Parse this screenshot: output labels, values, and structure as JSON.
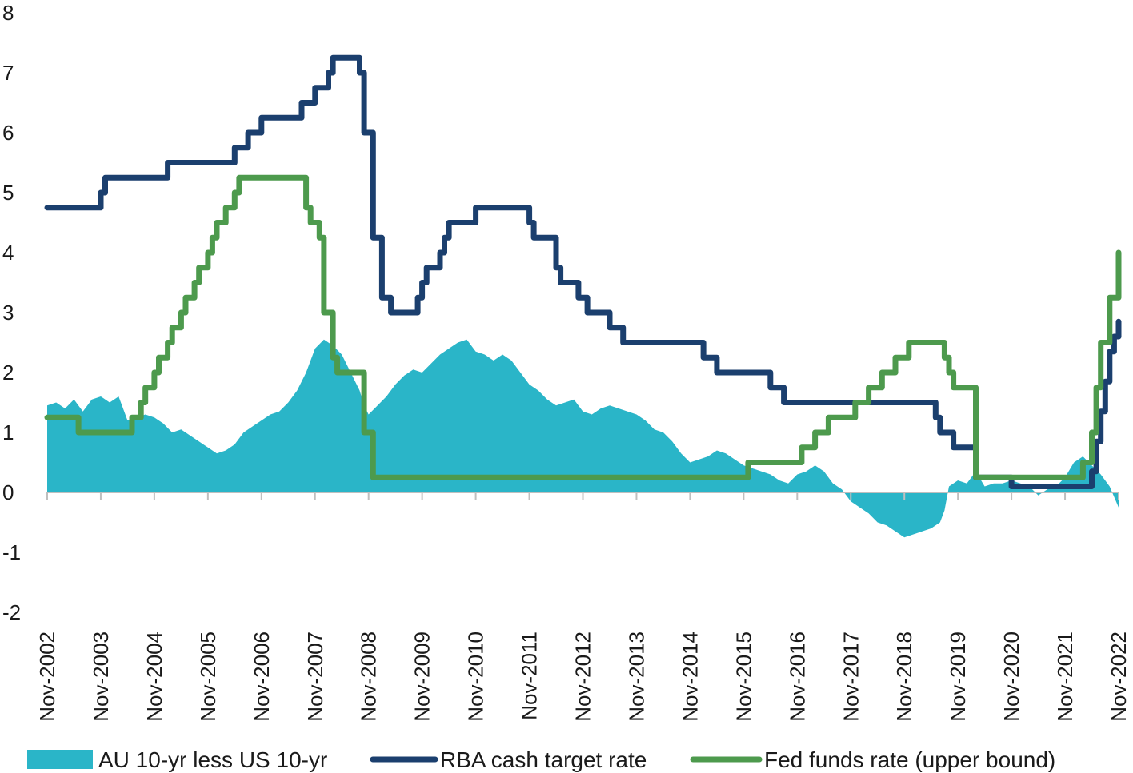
{
  "chart_data": {
    "type": "line",
    "title": "",
    "xlabel": "",
    "ylabel": "",
    "ylim": [
      -2,
      8
    ],
    "yticks": [
      "8",
      "7",
      "6",
      "5",
      "4",
      "3",
      "2",
      "1",
      "0",
      "-1",
      "-2"
    ],
    "x_ticks": [
      "Nov-2002",
      "Nov-2003",
      "Nov-2004",
      "Nov-2005",
      "Nov-2006",
      "Nov-2007",
      "Nov-2008",
      "Nov-2009",
      "Nov-2010",
      "Nov-2011",
      "Nov-2012",
      "Nov-2013",
      "Nov-2014",
      "Nov-2015",
      "Nov-2016",
      "Nov-2017",
      "Nov-2018",
      "Nov-2019",
      "Nov-2020",
      "Nov-2021",
      "Nov-2022"
    ],
    "x_range": [
      "2002-11",
      "2022-11"
    ],
    "legend_position": "bottom",
    "grid": false,
    "series": [
      {
        "name": "AU 10-yr less US 10-yr",
        "kind": "area",
        "color": "#2ab5c8",
        "points": [
          [
            "2002-11",
            1.45
          ],
          [
            "2003-01",
            1.5
          ],
          [
            "2003-03",
            1.4
          ],
          [
            "2003-05",
            1.55
          ],
          [
            "2003-07",
            1.35
          ],
          [
            "2003-09",
            1.55
          ],
          [
            "2003-11",
            1.6
          ],
          [
            "2004-01",
            1.5
          ],
          [
            "2004-03",
            1.6
          ],
          [
            "2004-05",
            1.2
          ],
          [
            "2004-07",
            1.25
          ],
          [
            "2004-09",
            1.3
          ],
          [
            "2004-11",
            1.25
          ],
          [
            "2005-01",
            1.15
          ],
          [
            "2005-03",
            1.0
          ],
          [
            "2005-05",
            1.05
          ],
          [
            "2005-07",
            0.95
          ],
          [
            "2005-09",
            0.85
          ],
          [
            "2005-11",
            0.75
          ],
          [
            "2006-01",
            0.65
          ],
          [
            "2006-03",
            0.7
          ],
          [
            "2006-05",
            0.8
          ],
          [
            "2006-07",
            1.0
          ],
          [
            "2006-09",
            1.1
          ],
          [
            "2006-11",
            1.2
          ],
          [
            "2007-01",
            1.3
          ],
          [
            "2007-03",
            1.35
          ],
          [
            "2007-05",
            1.5
          ],
          [
            "2007-07",
            1.7
          ],
          [
            "2007-09",
            2.0
          ],
          [
            "2007-11",
            2.4
          ],
          [
            "2008-01",
            2.55
          ],
          [
            "2008-03",
            2.45
          ],
          [
            "2008-05",
            2.3
          ],
          [
            "2008-07",
            2.0
          ],
          [
            "2008-09",
            1.7
          ],
          [
            "2008-10",
            1.45
          ],
          [
            "2008-11",
            1.3
          ],
          [
            "2009-01",
            1.45
          ],
          [
            "2009-03",
            1.6
          ],
          [
            "2009-05",
            1.8
          ],
          [
            "2009-07",
            1.95
          ],
          [
            "2009-09",
            2.05
          ],
          [
            "2009-11",
            2.0
          ],
          [
            "2010-01",
            2.15
          ],
          [
            "2010-03",
            2.3
          ],
          [
            "2010-05",
            2.4
          ],
          [
            "2010-07",
            2.5
          ],
          [
            "2010-09",
            2.55
          ],
          [
            "2010-11",
            2.35
          ],
          [
            "2011-01",
            2.3
          ],
          [
            "2011-03",
            2.2
          ],
          [
            "2011-05",
            2.3
          ],
          [
            "2011-07",
            2.2
          ],
          [
            "2011-09",
            2.0
          ],
          [
            "2011-11",
            1.8
          ],
          [
            "2012-01",
            1.7
          ],
          [
            "2012-03",
            1.55
          ],
          [
            "2012-05",
            1.45
          ],
          [
            "2012-07",
            1.5
          ],
          [
            "2012-09",
            1.55
          ],
          [
            "2012-11",
            1.35
          ],
          [
            "2013-01",
            1.3
          ],
          [
            "2013-03",
            1.4
          ],
          [
            "2013-05",
            1.45
          ],
          [
            "2013-07",
            1.4
          ],
          [
            "2013-09",
            1.35
          ],
          [
            "2013-11",
            1.3
          ],
          [
            "2014-01",
            1.2
          ],
          [
            "2014-03",
            1.05
          ],
          [
            "2014-05",
            1.0
          ],
          [
            "2014-07",
            0.85
          ],
          [
            "2014-09",
            0.65
          ],
          [
            "2014-11",
            0.5
          ],
          [
            "2015-01",
            0.55
          ],
          [
            "2015-03",
            0.6
          ],
          [
            "2015-05",
            0.7
          ],
          [
            "2015-07",
            0.65
          ],
          [
            "2015-09",
            0.55
          ],
          [
            "2015-11",
            0.45
          ],
          [
            "2016-01",
            0.4
          ],
          [
            "2016-03",
            0.35
          ],
          [
            "2016-05",
            0.3
          ],
          [
            "2016-07",
            0.2
          ],
          [
            "2016-09",
            0.15
          ],
          [
            "2016-11",
            0.3
          ],
          [
            "2017-01",
            0.35
          ],
          [
            "2017-03",
            0.45
          ],
          [
            "2017-05",
            0.35
          ],
          [
            "2017-07",
            0.15
          ],
          [
            "2017-09",
            0.05
          ],
          [
            "2017-11",
            -0.15
          ],
          [
            "2018-01",
            -0.25
          ],
          [
            "2018-03",
            -0.35
          ],
          [
            "2018-05",
            -0.5
          ],
          [
            "2018-07",
            -0.55
          ],
          [
            "2018-09",
            -0.65
          ],
          [
            "2018-11",
            -0.75
          ],
          [
            "2019-01",
            -0.7
          ],
          [
            "2019-03",
            -0.65
          ],
          [
            "2019-05",
            -0.6
          ],
          [
            "2019-07",
            -0.5
          ],
          [
            "2019-08",
            -0.3
          ],
          [
            "2019-09",
            0.1
          ],
          [
            "2019-11",
            0.2
          ],
          [
            "2020-01",
            0.15
          ],
          [
            "2020-03",
            0.35
          ],
          [
            "2020-05",
            0.1
          ],
          [
            "2020-07",
            0.15
          ],
          [
            "2020-09",
            0.15
          ],
          [
            "2020-11",
            0.2
          ],
          [
            "2021-01",
            0.15
          ],
          [
            "2021-03",
            0.1
          ],
          [
            "2021-05",
            -0.05
          ],
          [
            "2021-07",
            0.05
          ],
          [
            "2021-09",
            0.1
          ],
          [
            "2021-11",
            0.25
          ],
          [
            "2022-01",
            0.5
          ],
          [
            "2022-03",
            0.6
          ],
          [
            "2022-05",
            0.45
          ],
          [
            "2022-07",
            0.3
          ],
          [
            "2022-09",
            0.1
          ],
          [
            "2022-11",
            -0.25
          ]
        ]
      },
      {
        "name": "RBA cash target rate",
        "kind": "step",
        "color": "#1b3f6e",
        "points": [
          [
            "2002-11",
            4.75
          ],
          [
            "2003-11",
            5.0
          ],
          [
            "2003-12",
            5.25
          ],
          [
            "2005-02",
            5.5
          ],
          [
            "2006-05",
            5.75
          ],
          [
            "2006-08",
            6.0
          ],
          [
            "2006-11",
            6.25
          ],
          [
            "2007-08",
            6.5
          ],
          [
            "2007-11",
            6.75
          ],
          [
            "2008-02",
            7.0
          ],
          [
            "2008-03",
            7.25
          ],
          [
            "2008-09",
            7.0
          ],
          [
            "2008-10",
            6.0
          ],
          [
            "2008-12",
            4.25
          ],
          [
            "2009-02",
            3.25
          ],
          [
            "2009-04",
            3.0
          ],
          [
            "2009-10",
            3.25
          ],
          [
            "2009-11",
            3.5
          ],
          [
            "2009-12",
            3.75
          ],
          [
            "2010-03",
            4.0
          ],
          [
            "2010-04",
            4.25
          ],
          [
            "2010-05",
            4.5
          ],
          [
            "2010-11",
            4.75
          ],
          [
            "2011-11",
            4.5
          ],
          [
            "2011-12",
            4.25
          ],
          [
            "2012-05",
            3.75
          ],
          [
            "2012-06",
            3.5
          ],
          [
            "2012-10",
            3.25
          ],
          [
            "2012-12",
            3.0
          ],
          [
            "2013-05",
            2.75
          ],
          [
            "2013-08",
            2.5
          ],
          [
            "2015-02",
            2.25
          ],
          [
            "2015-05",
            2.0
          ],
          [
            "2016-05",
            1.75
          ],
          [
            "2016-08",
            1.5
          ],
          [
            "2019-06",
            1.25
          ],
          [
            "2019-07",
            1.0
          ],
          [
            "2019-10",
            0.75
          ],
          [
            "2020-03",
            0.5
          ],
          [
            "2020-03",
            0.25
          ],
          [
            "2020-11",
            0.1
          ],
          [
            "2022-05",
            0.35
          ],
          [
            "2022-06",
            0.85
          ],
          [
            "2022-07",
            1.35
          ],
          [
            "2022-08",
            1.85
          ],
          [
            "2022-09",
            2.35
          ],
          [
            "2022-10",
            2.6
          ],
          [
            "2022-11",
            2.85
          ]
        ]
      },
      {
        "name": "Fed funds rate (upper bound)",
        "kind": "step",
        "color": "#4d9a4d",
        "points": [
          [
            "2002-11",
            1.25
          ],
          [
            "2003-06",
            1.0
          ],
          [
            "2004-06",
            1.25
          ],
          [
            "2004-08",
            1.5
          ],
          [
            "2004-09",
            1.75
          ],
          [
            "2004-11",
            2.0
          ],
          [
            "2004-12",
            2.25
          ],
          [
            "2005-02",
            2.5
          ],
          [
            "2005-03",
            2.75
          ],
          [
            "2005-05",
            3.0
          ],
          [
            "2005-06",
            3.25
          ],
          [
            "2005-08",
            3.5
          ],
          [
            "2005-09",
            3.75
          ],
          [
            "2005-11",
            4.0
          ],
          [
            "2005-12",
            4.25
          ],
          [
            "2006-01",
            4.5
          ],
          [
            "2006-03",
            4.75
          ],
          [
            "2006-05",
            5.0
          ],
          [
            "2006-06",
            5.25
          ],
          [
            "2007-09",
            4.75
          ],
          [
            "2007-10",
            4.5
          ],
          [
            "2007-12",
            4.25
          ],
          [
            "2008-01",
            3.5
          ],
          [
            "2008-01",
            3.0
          ],
          [
            "2008-03",
            2.25
          ],
          [
            "2008-04",
            2.0
          ],
          [
            "2008-10",
            1.5
          ],
          [
            "2008-10",
            1.0
          ],
          [
            "2008-12",
            0.25
          ],
          [
            "2015-12",
            0.5
          ],
          [
            "2016-12",
            0.75
          ],
          [
            "2017-03",
            1.0
          ],
          [
            "2017-06",
            1.25
          ],
          [
            "2017-12",
            1.5
          ],
          [
            "2018-03",
            1.75
          ],
          [
            "2018-06",
            2.0
          ],
          [
            "2018-09",
            2.25
          ],
          [
            "2018-12",
            2.5
          ],
          [
            "2019-08",
            2.25
          ],
          [
            "2019-09",
            2.0
          ],
          [
            "2019-10",
            1.75
          ],
          [
            "2020-03",
            1.0
          ],
          [
            "2020-03",
            0.25
          ],
          [
            "2022-03",
            0.5
          ],
          [
            "2022-05",
            1.0
          ],
          [
            "2022-06",
            1.75
          ],
          [
            "2022-07",
            2.5
          ],
          [
            "2022-09",
            3.25
          ],
          [
            "2022-11",
            4.0
          ]
        ]
      }
    ]
  }
}
